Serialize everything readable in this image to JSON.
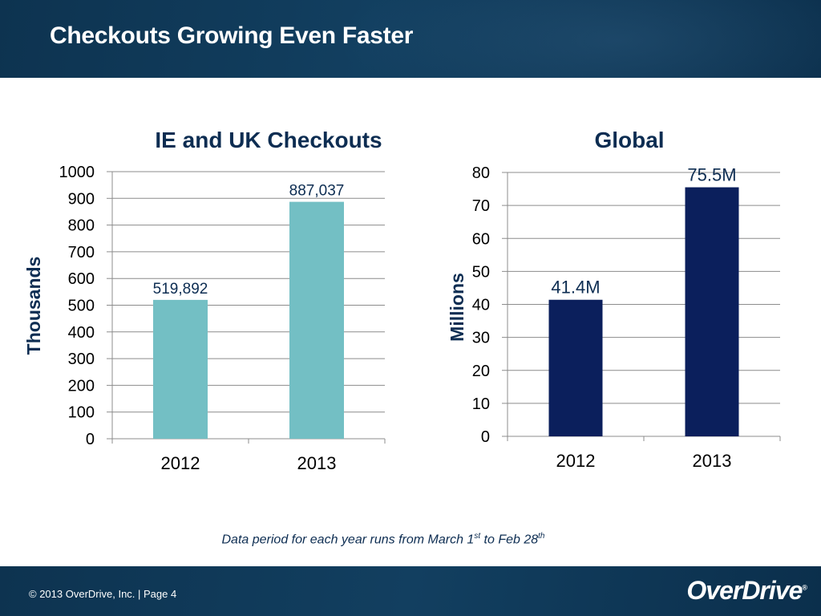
{
  "slide": {
    "title": "Checkouts Growing Even Faster"
  },
  "footnote": {
    "prefix": "Data period for each year runs from March 1",
    "sup1": "st",
    "middle": " to Feb 28",
    "sup2": "th"
  },
  "footer": {
    "copyright": "©  2013 OverDrive, Inc.  |  Page 4",
    "logo_text": "OverDrive",
    "logo_mark": "®"
  },
  "colors": {
    "header_bg": "#123f60",
    "left_bar": "#73bfc4",
    "right_bar": "#0b1f5c",
    "title_text": "#0d2d52"
  },
  "chart_data": [
    {
      "type": "bar",
      "title": "IE and UK Checkouts",
      "ylabel": "Thousands",
      "xlabel": "",
      "categories": [
        "2012",
        "2013"
      ],
      "values": [
        519.892,
        887.037
      ],
      "data_labels": [
        "519,892",
        "887,037"
      ],
      "ylim": [
        0,
        1000
      ],
      "yticks": [
        0,
        100,
        200,
        300,
        400,
        500,
        600,
        700,
        800,
        900,
        1000
      ],
      "color": "#73bfc4",
      "grid": true,
      "legend": "none"
    },
    {
      "type": "bar",
      "title": "Global",
      "ylabel": "Millions",
      "xlabel": "",
      "categories": [
        "2012",
        "2013"
      ],
      "values": [
        41.4,
        75.5
      ],
      "data_labels": [
        "41.4M",
        "75.5M"
      ],
      "ylim": [
        0,
        80
      ],
      "yticks": [
        0,
        10,
        20,
        30,
        40,
        50,
        60,
        70,
        80
      ],
      "color": "#0b1f5c",
      "grid": true,
      "legend": "none"
    }
  ]
}
